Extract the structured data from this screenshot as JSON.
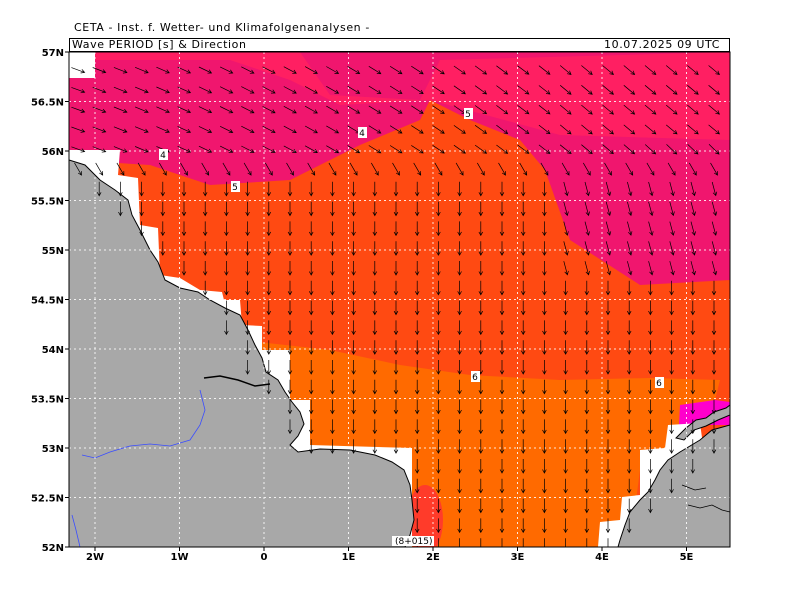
{
  "header": {
    "title": "CETA - Inst. f. Wetter- und Klimafolgenanalysen -",
    "subtitle": "Wave PERIOD [s] & Direction",
    "datetime": "10.07.2025 09 UTC"
  },
  "axes": {
    "lon_labels": [
      "2W",
      "1W",
      "0",
      "1E",
      "2E",
      "3E",
      "4E",
      "5E"
    ],
    "lat_labels": [
      "57N",
      "56.5N",
      "56N",
      "55.5N",
      "55N",
      "54.5N",
      "54N",
      "53.5N",
      "53N",
      "52.5N",
      "52N"
    ]
  },
  "contour_labels": [
    "4",
    "4",
    "5",
    "5",
    "6",
    "6"
  ],
  "footer_label": "(8+015)",
  "colors": {
    "land": "#a8a8a8",
    "period_4": "#ff1f62",
    "period_4b": "#f0166e",
    "period_5": "#ff4a12",
    "period_6": "#ff6a00",
    "period_3": "#ff00cc",
    "undefined": "#ffffff",
    "river": "#3a4dff"
  }
}
